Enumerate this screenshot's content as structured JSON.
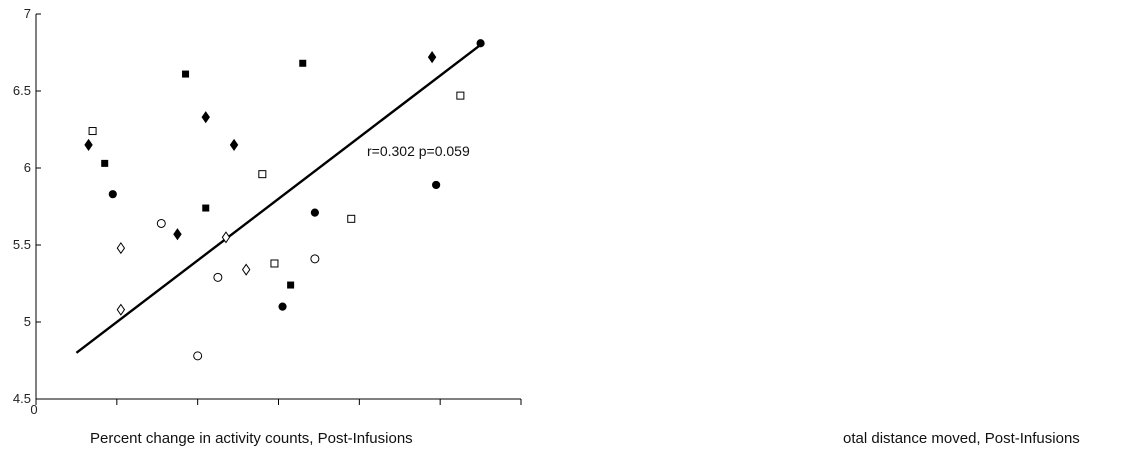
{
  "chart_data": {
    "type": "scatter",
    "title": "",
    "xlabel": "Percent change in activity counts, Post-Infusions",
    "ylabel": "",
    "xlim": [
      0,
      12
    ],
    "ylim": [
      4.5,
      7
    ],
    "x_ticks": [
      0,
      2,
      4,
      6,
      8,
      10,
      12
    ],
    "x_tick_labels_shown": [
      "0"
    ],
    "y_ticks": [
      4.5,
      5,
      5.5,
      6,
      6.5,
      7
    ],
    "y_tick_labels": [
      "4.5",
      "5",
      "5.5",
      "6",
      "6.5",
      "7"
    ],
    "grid": false,
    "series": [
      {
        "marker": "filled-diamond",
        "points": [
          [
            1.3,
            6.15
          ],
          [
            3.5,
            5.57
          ],
          [
            4.2,
            6.33
          ],
          [
            4.9,
            6.15
          ],
          [
            9.8,
            6.72
          ]
        ]
      },
      {
        "marker": "open-square",
        "points": [
          [
            1.4,
            6.24
          ],
          [
            5.6,
            5.96
          ],
          [
            5.9,
            5.38
          ],
          [
            7.8,
            5.67
          ],
          [
            10.5,
            6.47
          ]
        ]
      },
      {
        "marker": "filled-square",
        "points": [
          [
            1.7,
            6.03
          ],
          [
            3.7,
            6.61
          ],
          [
            4.2,
            5.74
          ],
          [
            6.3,
            5.24
          ],
          [
            6.6,
            6.68
          ]
        ]
      },
      {
        "marker": "filled-circle",
        "points": [
          [
            1.9,
            5.83
          ],
          [
            6.1,
            5.1
          ],
          [
            6.9,
            5.71
          ],
          [
            9.9,
            5.89
          ],
          [
            11.0,
            6.81
          ]
        ]
      },
      {
        "marker": "open-diamond",
        "points": [
          [
            2.1,
            5.48
          ],
          [
            2.1,
            5.08
          ],
          [
            4.7,
            5.55
          ],
          [
            5.2,
            5.34
          ]
        ]
      },
      {
        "marker": "open-circle",
        "points": [
          [
            3.1,
            5.64
          ],
          [
            4.0,
            4.78
          ],
          [
            4.5,
            5.29
          ],
          [
            6.9,
            5.41
          ]
        ]
      }
    ],
    "fit_line": {
      "x": [
        1.0,
        11.0
      ],
      "y": [
        4.8,
        6.8
      ]
    },
    "annotation": "r=0.302  p=0.059"
  },
  "right_panel_label": "otal distance moved, Post-Infusions"
}
